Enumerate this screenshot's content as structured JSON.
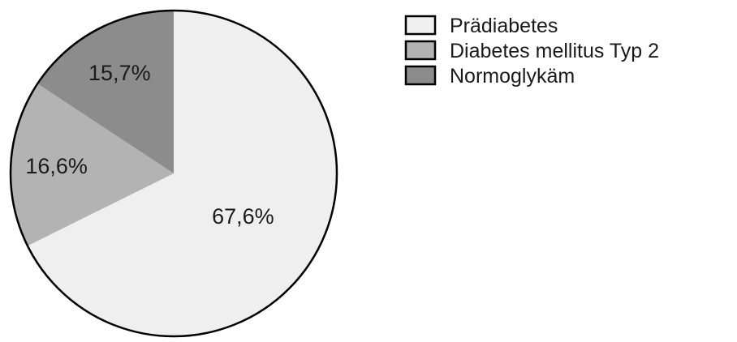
{
  "chart_data": {
    "type": "pie",
    "title": "",
    "slices": [
      {
        "name": "Prädiabetes",
        "value": 67.6,
        "label": "67,6%",
        "color": "#efefef"
      },
      {
        "name": "Diabetes mellitus Typ 2",
        "value": 16.6,
        "label": "16,6%",
        "color": "#b3b3b3"
      },
      {
        "name": "Normoglykäm",
        "value": 15.7,
        "label": "15,7%",
        "color": "#8c8c8c"
      }
    ],
    "start_angle": "12 o'clock",
    "direction": "clockwise",
    "legend_position": "top-right",
    "outline_color": "#000000"
  }
}
